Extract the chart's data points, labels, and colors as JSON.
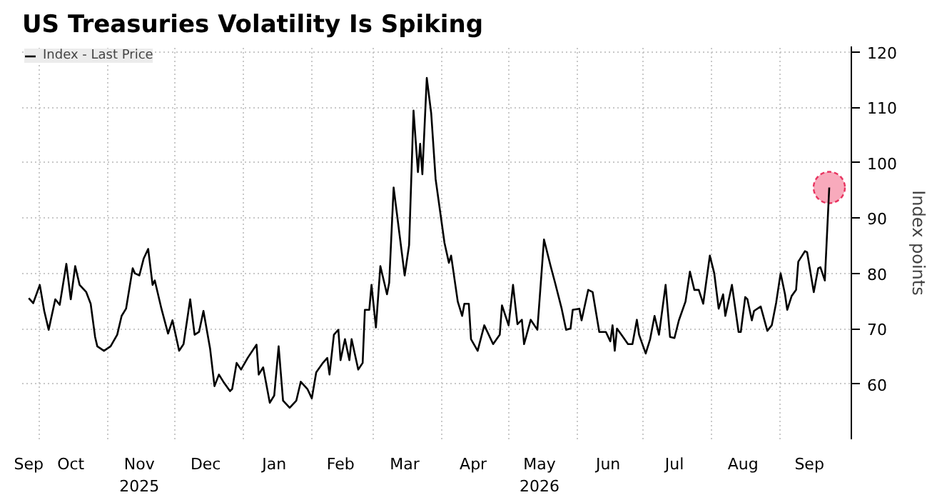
{
  "chart_data": {
    "type": "line",
    "title": "US Treasuries Volatility Is Spiking",
    "ylabel": "Index points",
    "x": [
      "2025-09-26",
      "2025-09-28",
      "2025-10-01",
      "2025-10-03",
      "2025-10-05",
      "2025-10-08",
      "2025-10-10",
      "2025-10-13",
      "2025-10-15",
      "2025-10-17",
      "2025-10-19",
      "2025-10-22",
      "2025-10-24",
      "2025-10-26",
      "2025-10-27",
      "2025-10-30",
      "2025-11-02",
      "2025-11-05",
      "2025-11-07",
      "2025-11-09",
      "2025-11-12",
      "2025-11-13",
      "2025-11-15",
      "2025-11-17",
      "2025-11-19",
      "2025-11-21",
      "2025-11-22",
      "2025-11-25",
      "2025-11-28",
      "2025-11-30",
      "2025-12-03",
      "2025-12-05",
      "2025-12-08",
      "2025-12-10",
      "2025-12-12",
      "2025-12-14",
      "2025-12-17",
      "2025-12-19",
      "2025-12-21",
      "2025-12-23",
      "2025-12-26",
      "2025-12-27",
      "2025-12-29",
      "2025-12-31",
      "2026-01-03",
      "2026-01-07",
      "2026-01-08",
      "2026-01-10",
      "2026-01-13",
      "2026-01-15",
      "2026-01-17",
      "2026-01-19",
      "2026-01-22",
      "2026-01-25",
      "2026-01-27",
      "2026-01-30",
      "2026-02-01",
      "2026-02-03",
      "2026-02-06",
      "2026-02-08",
      "2026-02-09",
      "2026-02-11",
      "2026-02-13",
      "2026-02-14",
      "2026-02-16",
      "2026-02-18",
      "2026-02-19",
      "2026-02-22",
      "2026-02-24",
      "2026-02-25",
      "2026-02-27",
      "2026-02-28",
      "2026-03-02",
      "2026-03-04",
      "2026-03-07",
      "2026-03-08",
      "2026-03-10",
      "2026-03-15",
      "2026-03-17",
      "2026-03-19",
      "2026-03-21",
      "2026-03-22",
      "2026-03-23",
      "2026-03-25",
      "2026-03-27",
      "2026-03-29",
      "2026-04-02",
      "2026-04-04",
      "2026-04-05",
      "2026-04-08",
      "2026-04-10",
      "2026-04-11",
      "2026-04-13",
      "2026-04-14",
      "2026-04-17",
      "2026-04-20",
      "2026-04-24",
      "2026-04-27",
      "2026-04-28",
      "2026-05-01",
      "2026-05-03",
      "2026-05-05",
      "2026-05-07",
      "2026-05-08",
      "2026-05-11",
      "2026-05-14",
      "2026-05-17",
      "2026-05-20",
      "2026-05-22",
      "2026-05-25",
      "2026-05-27",
      "2026-05-29",
      "2026-05-30",
      "2026-06-02",
      "2026-06-03",
      "2026-06-06",
      "2026-06-08",
      "2026-06-11",
      "2026-06-14",
      "2026-06-16",
      "2026-06-17",
      "2026-06-18",
      "2026-06-19",
      "2026-06-21",
      "2026-06-24",
      "2026-06-26",
      "2026-06-28",
      "2026-06-29",
      "2026-07-02",
      "2026-07-04",
      "2026-07-06",
      "2026-07-08",
      "2026-07-11",
      "2026-07-13",
      "2026-07-15",
      "2026-07-17",
      "2026-07-20",
      "2026-07-22",
      "2026-07-24",
      "2026-07-26",
      "2026-07-28",
      "2026-07-31",
      "2026-08-02",
      "2026-08-04",
      "2026-08-06",
      "2026-08-07",
      "2026-08-10",
      "2026-08-13",
      "2026-08-14",
      "2026-08-16",
      "2026-08-17",
      "2026-08-19",
      "2026-08-20",
      "2026-08-23",
      "2026-08-26",
      "2026-08-28",
      "2026-08-30",
      "2026-09-01",
      "2026-09-03",
      "2026-09-04",
      "2026-09-06",
      "2026-09-08",
      "2026-09-09",
      "2026-09-12",
      "2026-09-13",
      "2026-09-16",
      "2026-09-18",
      "2026-09-19",
      "2026-09-21",
      "2026-09-23"
    ],
    "series": [
      {
        "name": "Index - Last Price",
        "color": "#000000",
        "values": [
          75.5,
          74.6,
          77.9,
          73.2,
          69.8,
          75.3,
          74.3,
          81.7,
          75.3,
          81.3,
          77.9,
          76.6,
          74.5,
          68.5,
          66.8,
          66.0,
          66.8,
          68.9,
          72.3,
          73.6,
          80.9,
          80.0,
          79.6,
          82.7,
          84.4,
          77.9,
          78.7,
          73.6,
          69.1,
          71.5,
          66.0,
          67.2,
          75.3,
          68.9,
          69.4,
          73.2,
          66.4,
          59.6,
          61.7,
          60.4,
          58.7,
          59.1,
          63.8,
          62.6,
          64.7,
          67.1,
          61.7,
          63.0,
          56.6,
          57.9,
          66.8,
          57.0,
          55.7,
          57.0,
          60.4,
          59.1,
          57.4,
          62.1,
          63.8,
          64.7,
          61.7,
          68.9,
          69.8,
          64.3,
          68.1,
          64.3,
          68.1,
          62.6,
          63.8,
          73.4,
          73.4,
          77.9,
          70.2,
          81.3,
          76.2,
          78.3,
          95.5,
          79.6,
          85.1,
          109.4,
          98.3,
          103.4,
          97.9,
          115.3,
          108.9,
          97.0,
          85.5,
          81.9,
          83.2,
          74.9,
          72.3,
          74.5,
          74.5,
          68.1,
          66.0,
          70.6,
          67.2,
          68.9,
          74.2,
          70.6,
          77.9,
          70.8,
          71.6,
          67.2,
          71.6,
          69.8,
          86.1,
          81.3,
          78.3,
          73.6,
          69.8,
          70.0,
          73.4,
          73.6,
          71.5,
          77.0,
          76.6,
          69.4,
          69.4,
          67.7,
          70.6,
          66.0,
          70.0,
          68.9,
          67.2,
          67.2,
          71.6,
          68.9,
          65.5,
          68.1,
          72.3,
          68.9,
          77.9,
          68.5,
          68.3,
          71.5,
          74.9,
          80.3,
          77.0,
          77.0,
          74.5,
          83.2,
          80.0,
          73.6,
          76.2,
          72.3,
          77.9,
          69.4,
          69.4,
          75.7,
          75.3,
          71.5,
          73.2,
          74.0,
          69.6,
          70.6,
          74.7,
          80.0,
          76.2,
          73.4,
          75.9,
          77.0,
          82.1,
          84.0,
          83.8,
          76.6,
          80.9,
          81.1,
          78.7,
          95.5
        ]
      },
      {
        "type": "scatter",
        "marker": "circle",
        "color": "#f7a1b5",
        "x": [
          "2026-09-23"
        ],
        "values": [
          95.5
        ]
      }
    ],
    "xlim": [
      "2025-09-23",
      "2026-10-03"
    ],
    "xticks": [
      {
        "value": "2025-09-26",
        "label": "Sep"
      },
      {
        "value": "2025-10-15",
        "label": "Oct"
      },
      {
        "value": "2025-11-15",
        "label": "Nov\n2025"
      },
      {
        "value": "2025-12-15",
        "label": "Dec"
      },
      {
        "value": "2026-01-15",
        "label": "Jan"
      },
      {
        "value": "2026-02-14",
        "label": "Feb"
      },
      {
        "value": "2026-03-15",
        "label": "Mar"
      },
      {
        "value": "2026-04-15",
        "label": "Apr"
      },
      {
        "value": "2026-05-15",
        "label": "May\n2026"
      },
      {
        "value": "2026-06-15",
        "label": "Jun"
      },
      {
        "value": "2026-07-15",
        "label": "Jul"
      },
      {
        "value": "2026-08-15",
        "label": "Aug"
      },
      {
        "value": "2026-09-14",
        "label": "Sep"
      },
      {
        "value": "2025-10-01",
        "label": null
      },
      {
        "value": "2025-11-01",
        "label": null
      },
      {
        "value": "2025-12-01",
        "label": null
      },
      {
        "value": "2026-01-01",
        "label": null
      },
      {
        "value": "2026-02-01",
        "label": null
      },
      {
        "value": "2026-03-01",
        "label": null
      },
      {
        "value": "2026-04-01",
        "label": null
      },
      {
        "value": "2026-05-01",
        "label": null
      },
      {
        "value": "2026-06-01",
        "label": null
      },
      {
        "value": "2026-07-01",
        "label": null
      },
      {
        "value": "2026-08-01",
        "label": null
      },
      {
        "value": "2026-09-01",
        "label": null
      }
    ],
    "ylim": [
      50,
      121
    ],
    "yticks": [
      60,
      70,
      80,
      90,
      100,
      110,
      120
    ],
    "grid": true,
    "legend": "top left",
    "line_style": "solid",
    "marker": "none"
  }
}
